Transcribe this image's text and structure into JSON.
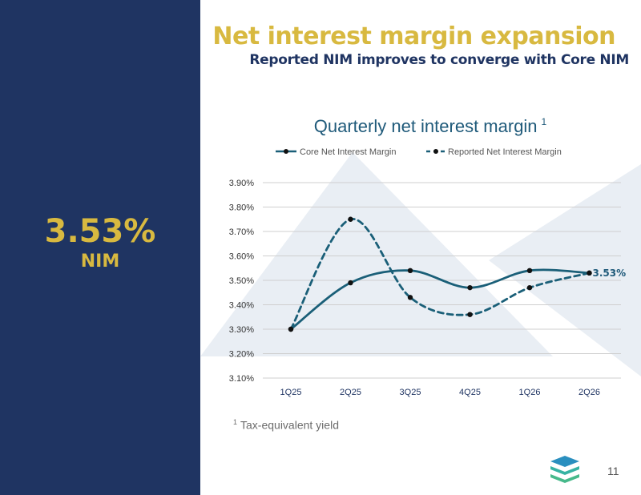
{
  "slide": {
    "title": "Net interest margin expansion",
    "subtitle": "Reported NIM improves to converge with Core NIM",
    "kpi": {
      "value": "3.53%",
      "label": "NIM"
    },
    "footnote": {
      "marker": "1",
      "text": "Tax-equivalent yield"
    },
    "page_number": "11",
    "logo_icon": "stacked-layers-logo-icon"
  },
  "colors": {
    "sidebar": "#1f3462",
    "gold": "#d8b940",
    "core_line": "#1a5f78",
    "title_blue": "#1f5a7a"
  },
  "chart_data": {
    "type": "line",
    "title": "Quarterly net interest margin",
    "title_superscript": "1",
    "categories": [
      "1Q25",
      "2Q25",
      "3Q25",
      "4Q25",
      "1Q26",
      "2Q26"
    ],
    "series": [
      {
        "name": "Core Net Interest Margin",
        "style": "solid",
        "values": [
          3.3,
          3.49,
          3.54,
          3.47,
          3.54,
          3.53
        ]
      },
      {
        "name": "Reported Net Interest Margin",
        "style": "dashed",
        "values": [
          3.3,
          3.75,
          3.43,
          3.36,
          3.47,
          3.53
        ]
      }
    ],
    "ylim": [
      3.1,
      3.9
    ],
    "yticks": [
      "3.10%",
      "3.20%",
      "3.30%",
      "3.40%",
      "3.50%",
      "3.60%",
      "3.70%",
      "3.80%",
      "3.90%"
    ],
    "data_label": "3.53%",
    "grid": true,
    "legend": "top"
  }
}
